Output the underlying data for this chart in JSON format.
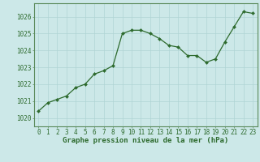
{
  "x": [
    0,
    1,
    2,
    3,
    4,
    5,
    6,
    7,
    8,
    9,
    10,
    11,
    12,
    13,
    14,
    15,
    16,
    17,
    18,
    19,
    20,
    21,
    22,
    23
  ],
  "y": [
    1020.4,
    1020.9,
    1021.1,
    1021.3,
    1021.8,
    1022.0,
    1022.6,
    1022.8,
    1023.1,
    1025.0,
    1025.2,
    1025.2,
    1025.0,
    1024.7,
    1024.3,
    1024.2,
    1023.7,
    1023.7,
    1023.3,
    1023.5,
    1024.5,
    1025.4,
    1026.3,
    1026.2
  ],
  "ylim": [
    1019.5,
    1026.8
  ],
  "yticks": [
    1020,
    1021,
    1022,
    1023,
    1024,
    1025,
    1026
  ],
  "xticks": [
    0,
    1,
    2,
    3,
    4,
    5,
    6,
    7,
    8,
    9,
    10,
    11,
    12,
    13,
    14,
    15,
    16,
    17,
    18,
    19,
    20,
    21,
    22,
    23
  ],
  "line_color": "#2d6a2d",
  "marker_color": "#2d6a2d",
  "bg_color": "#cce8e8",
  "grid_color": "#b0d4d4",
  "xlabel": "Graphe pression niveau de la mer (hPa)",
  "xlabel_color": "#2d6a2d",
  "tick_color": "#2d6a2d",
  "border_color": "#5a8a5a",
  "font_size_xlabel": 6.5,
  "font_size_ticks": 5.5
}
